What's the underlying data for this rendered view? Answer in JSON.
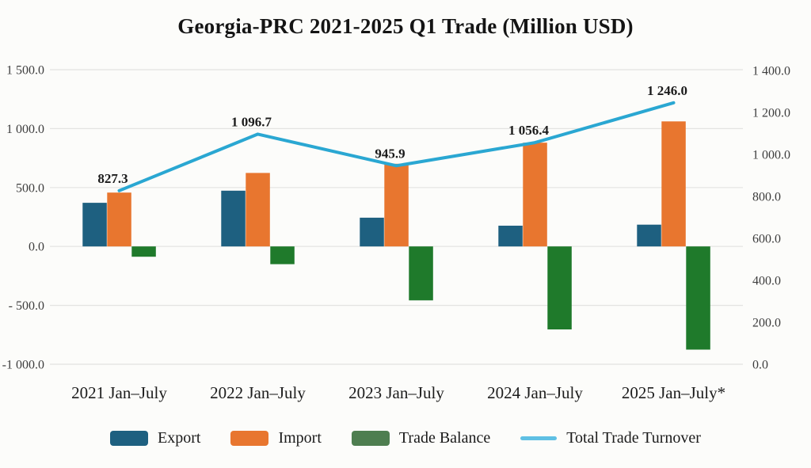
{
  "title": "Georgia-PRC 2021-2025 Q1 Trade (Million USD)",
  "chart_data": {
    "type": "combo-bar-line",
    "title": "Georgia-PRC 2021-2025 Q1 Trade (Million USD)",
    "units": "Million USD",
    "categories": [
      "2021 Jan–July",
      "2022 Jan–July",
      "2023 Jan–July",
      "2024 Jan–July",
      "2025 Jan–July*"
    ],
    "series": [
      {
        "name": "Export",
        "type": "bar",
        "axis": "left",
        "color": "#1e6080",
        "values": [
          370.0,
          473.0,
          244.0,
          176.0,
          185.0
        ]
      },
      {
        "name": "Import",
        "type": "bar",
        "axis": "left",
        "color": "#e8762f",
        "values": [
          457.3,
          623.7,
          701.9,
          880.4,
          1061.0
        ]
      },
      {
        "name": "Trade Balance",
        "type": "bar",
        "axis": "left",
        "color": "#1f7a2b",
        "legend_color": "#4e7e50",
        "values": [
          -87.3,
          -150.7,
          -457.9,
          -704.4,
          -876.0
        ]
      },
      {
        "name": "Total Trade Turnover",
        "type": "line",
        "axis": "right",
        "color": "#2aa7d2",
        "legend_color": "#5fc0e4",
        "values": [
          827.3,
          1096.7,
          945.9,
          1056.4,
          1246.0
        ],
        "labels": [
          "827.3",
          "1 096.7",
          "945.9",
          "1 056.4",
          "1 246.0"
        ]
      }
    ],
    "left_axis": {
      "min": -1000,
      "max": 1500,
      "ticks": [
        1500,
        1000,
        500,
        0,
        -500,
        -1000
      ],
      "tick_labels": [
        "1 500.0",
        "1 000.0",
        "500.0",
        "0.0",
        "- 500.0",
        "-1 000.0"
      ]
    },
    "right_axis": {
      "min": 0,
      "max": 1400,
      "ticks": [
        1400,
        1200,
        1000,
        800,
        600,
        400,
        200,
        0
      ],
      "tick_labels": [
        "1 400.0",
        "1 200.0",
        "1 000.0",
        "800.0",
        "600.0",
        "400.0",
        "200.0",
        "0.0"
      ]
    },
    "grid": "horizontal",
    "legend_position": "bottom"
  },
  "legend": {
    "export_label": "Export",
    "import_label": "Import",
    "balance_label": "Trade Balance",
    "turnover_label": "Total Trade Turnover"
  },
  "colors": {
    "background": "#fcfcfa",
    "grid": "#e3e3e1",
    "title_text": "#141414",
    "axis_text": "#3d3d3d",
    "label_text": "#1b1b1b"
  }
}
